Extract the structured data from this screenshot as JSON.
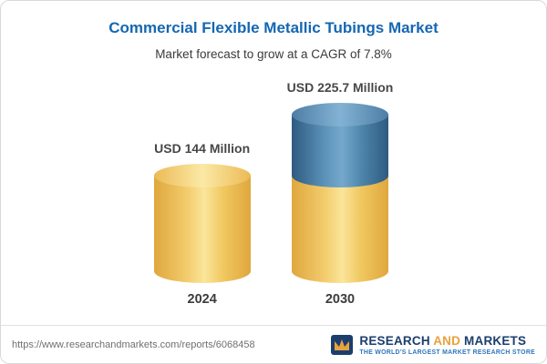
{
  "chart_data": {
    "type": "bar",
    "title": "Commercial Flexible Metallic Tubings Market",
    "subtitle": "Market forecast to grow at a CAGR of 7.8%",
    "categories": [
      "2024",
      "2030"
    ],
    "values": [
      144,
      225.7
    ],
    "value_labels": [
      "USD 144 Million",
      "USD 225.7 Million"
    ],
    "series": [
      {
        "name": "2024 base segment (yellow)",
        "values": [
          144,
          144
        ]
      },
      {
        "name": "growth to 2030 segment (blue)",
        "values": [
          0,
          81.7
        ]
      }
    ],
    "xlabel": "",
    "ylabel": "USD Million",
    "ylim": [
      0,
      240
    ],
    "grid": false,
    "legend": false,
    "colors": {
      "base": "#F3CD6E",
      "growth": "#4E86AC"
    }
  },
  "footer": {
    "url": "https://www.researchandmarkets.com/reports/6068458",
    "logo": {
      "line1_part1": "RESEARCH",
      "line1_part2": "AND",
      "line1_part3": "MARKETS",
      "tagline": "THE WORLD'S LARGEST MARKET RESEARCH STORE"
    }
  },
  "colors": {
    "title_blue": "#1567B2",
    "navy": "#1C3E6E",
    "gold": "#E8A33D",
    "tagline_blue": "#2F77BC"
  }
}
